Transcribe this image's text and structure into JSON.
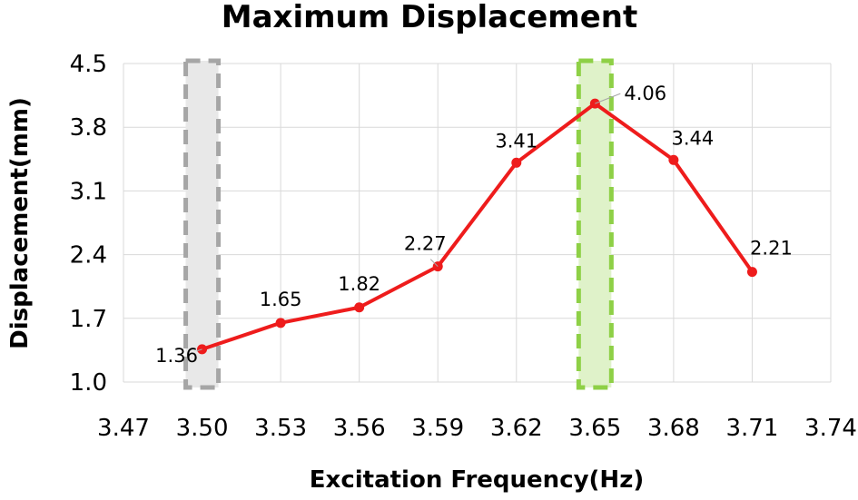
{
  "chart_data": {
    "type": "line",
    "title": "Maximum Displacement",
    "xlabel": "Excitation Frequency(Hz)",
    "ylabel": "Displacement(mm)",
    "xlim": [
      3.47,
      3.74
    ],
    "ylim": [
      1.0,
      4.5
    ],
    "x_ticks": [
      "3.47",
      "3.50",
      "3.53",
      "3.56",
      "3.59",
      "3.62",
      "3.65",
      "3.68",
      "3.71",
      "3.74"
    ],
    "y_ticks": [
      "1.0",
      "1.7",
      "2.4",
      "3.1",
      "3.8",
      "4.5"
    ],
    "grid": true,
    "series": [
      {
        "x": [
          3.5,
          3.53,
          3.56,
          3.59,
          3.62,
          3.65,
          3.68,
          3.71
        ],
        "y": [
          1.36,
          1.65,
          1.82,
          2.27,
          3.41,
          4.06,
          3.44,
          2.21
        ],
        "labels": [
          "1.36",
          "1.65",
          "1.82",
          "2.27",
          "3.41",
          "4.06",
          "3.44",
          "2.21"
        ],
        "color": "#ee1c1c"
      }
    ],
    "highlights": [
      {
        "x_center": 3.5,
        "fill": "#e8e8e8",
        "stroke": "#a6a6a6"
      },
      {
        "x_center": 3.65,
        "fill": "#dff2c9",
        "stroke": "#8ed046"
      }
    ]
  }
}
